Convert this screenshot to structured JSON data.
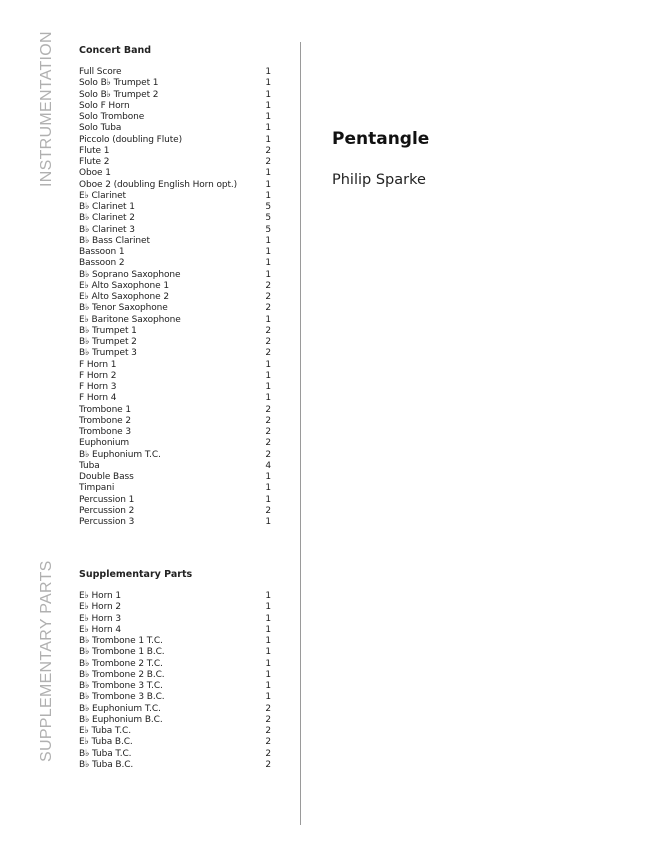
{
  "side_labels": {
    "instrumentation": "INSTRUMENTATION",
    "supplementary": "SUPPLEMENTARY PARTS"
  },
  "title": "Pentangle",
  "composer": "Philip Sparke",
  "concert_band": {
    "heading": "Concert Band",
    "items": [
      {
        "name": "Full Score",
        "qty": "1"
      },
      {
        "name": "Solo B♭ Trumpet 1",
        "qty": "1"
      },
      {
        "name": "Solo B♭ Trumpet 2",
        "qty": "1"
      },
      {
        "name": "Solo F Horn",
        "qty": "1"
      },
      {
        "name": "Solo Trombone",
        "qty": "1"
      },
      {
        "name": "Solo Tuba",
        "qty": "1"
      },
      {
        "name": "Piccolo (doubling Flute)",
        "qty": "1"
      },
      {
        "name": "Flute 1",
        "qty": "2"
      },
      {
        "name": "Flute 2",
        "qty": "2"
      },
      {
        "name": "Oboe 1",
        "qty": "1"
      },
      {
        "name": "Oboe 2 (doubling English Horn opt.)",
        "qty": "1"
      },
      {
        "name": "E♭ Clarinet",
        "qty": "1"
      },
      {
        "name": "B♭ Clarinet 1",
        "qty": "5"
      },
      {
        "name": "B♭ Clarinet 2",
        "qty": "5"
      },
      {
        "name": "B♭ Clarinet 3",
        "qty": "5"
      },
      {
        "name": "B♭ Bass Clarinet",
        "qty": "1"
      },
      {
        "name": "Bassoon 1",
        "qty": "1"
      },
      {
        "name": "Bassoon 2",
        "qty": "1"
      },
      {
        "name": "B♭ Soprano Saxophone",
        "qty": "1"
      },
      {
        "name": "E♭ Alto Saxophone 1",
        "qty": "2"
      },
      {
        "name": "E♭ Alto Saxophone 2",
        "qty": "2"
      },
      {
        "name": "B♭ Tenor Saxophone",
        "qty": "2"
      },
      {
        "name": "E♭ Baritone Saxophone",
        "qty": "1"
      },
      {
        "name": "B♭ Trumpet 1",
        "qty": "2"
      },
      {
        "name": "B♭ Trumpet 2",
        "qty": "2"
      },
      {
        "name": "B♭ Trumpet 3",
        "qty": "2"
      },
      {
        "name": "F Horn 1",
        "qty": "1"
      },
      {
        "name": "F Horn 2",
        "qty": "1"
      },
      {
        "name": "F Horn 3",
        "qty": "1"
      },
      {
        "name": "F Horn 4",
        "qty": "1"
      },
      {
        "name": "Trombone 1",
        "qty": "2"
      },
      {
        "name": "Trombone 2",
        "qty": "2"
      },
      {
        "name": "Trombone 3",
        "qty": "2"
      },
      {
        "name": "Euphonium",
        "qty": "2"
      },
      {
        "name": "B♭ Euphonium T.C.",
        "qty": "2"
      },
      {
        "name": "Tuba",
        "qty": "4"
      },
      {
        "name": "Double Bass",
        "qty": "1"
      },
      {
        "name": "Timpani",
        "qty": "1"
      },
      {
        "name": "Percussion 1",
        "qty": "1"
      },
      {
        "name": "Percussion 2",
        "qty": "2"
      },
      {
        "name": "Percussion 3",
        "qty": "1"
      }
    ]
  },
  "supplementary": {
    "heading": "Supplementary Parts",
    "items": [
      {
        "name": "E♭ Horn 1",
        "qty": "1"
      },
      {
        "name": "E♭ Horn 2",
        "qty": "1"
      },
      {
        "name": "E♭ Horn 3",
        "qty": "1"
      },
      {
        "name": "E♭ Horn 4",
        "qty": "1"
      },
      {
        "name": "B♭ Trombone 1 T.C.",
        "qty": "1"
      },
      {
        "name": "B♭ Trombone 1 B.C.",
        "qty": "1"
      },
      {
        "name": "B♭ Trombone 2 T.C.",
        "qty": "1"
      },
      {
        "name": "B♭ Trombone 2 B.C.",
        "qty": "1"
      },
      {
        "name": "B♭ Trombone 3 T.C.",
        "qty": "1"
      },
      {
        "name": "B♭ Trombone 3 B.C.",
        "qty": "1"
      },
      {
        "name": "B♭ Euphonium T.C.",
        "qty": "2"
      },
      {
        "name": "B♭ Euphonium B.C.",
        "qty": "2"
      },
      {
        "name": "E♭ Tuba T.C.",
        "qty": "2"
      },
      {
        "name": "E♭ Tuba B.C.",
        "qty": "2"
      },
      {
        "name": "B♭ Tuba T.C.",
        "qty": "2"
      },
      {
        "name": "B♭ Tuba B.C.",
        "qty": "2"
      }
    ]
  }
}
